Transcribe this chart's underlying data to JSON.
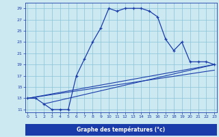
{
  "title": "Graphe des températures (°c)",
  "background_color": "#cce8f0",
  "plot_bg_color": "#cce8f0",
  "grid_color": "#88c4d8",
  "line_color": "#1a3caa",
  "xlabel_bg": "#1a3caa",
  "xlabel_fg": "#ffffff",
  "xlim": [
    -0.3,
    23.3
  ],
  "ylim": [
    10.5,
    30.0
  ],
  "xticks": [
    0,
    1,
    2,
    3,
    4,
    5,
    6,
    7,
    8,
    9,
    10,
    11,
    12,
    13,
    14,
    15,
    16,
    17,
    18,
    19,
    20,
    21,
    22,
    23
  ],
  "yticks": [
    11,
    13,
    15,
    17,
    19,
    21,
    23,
    25,
    27,
    29
  ],
  "main_x": [
    0,
    1,
    2,
    3,
    4,
    5,
    6,
    7,
    8,
    9,
    10,
    11,
    12,
    13,
    14,
    15,
    16,
    17,
    18,
    19,
    20,
    21,
    22,
    23
  ],
  "main_y": [
    13,
    13,
    12,
    11,
    11,
    11,
    17,
    20,
    23,
    25.5,
    29,
    28.5,
    29,
    29,
    29,
    28.5,
    27.5,
    23.5,
    21.5,
    23,
    19.5,
    19.5,
    19.5,
    19
  ],
  "line1_x": [
    0,
    23
  ],
  "line1_y": [
    13,
    19
  ],
  "line2_x": [
    0,
    23
  ],
  "line2_y": [
    13,
    18
  ],
  "line3_x": [
    2,
    23
  ],
  "line3_y": [
    12,
    19
  ]
}
